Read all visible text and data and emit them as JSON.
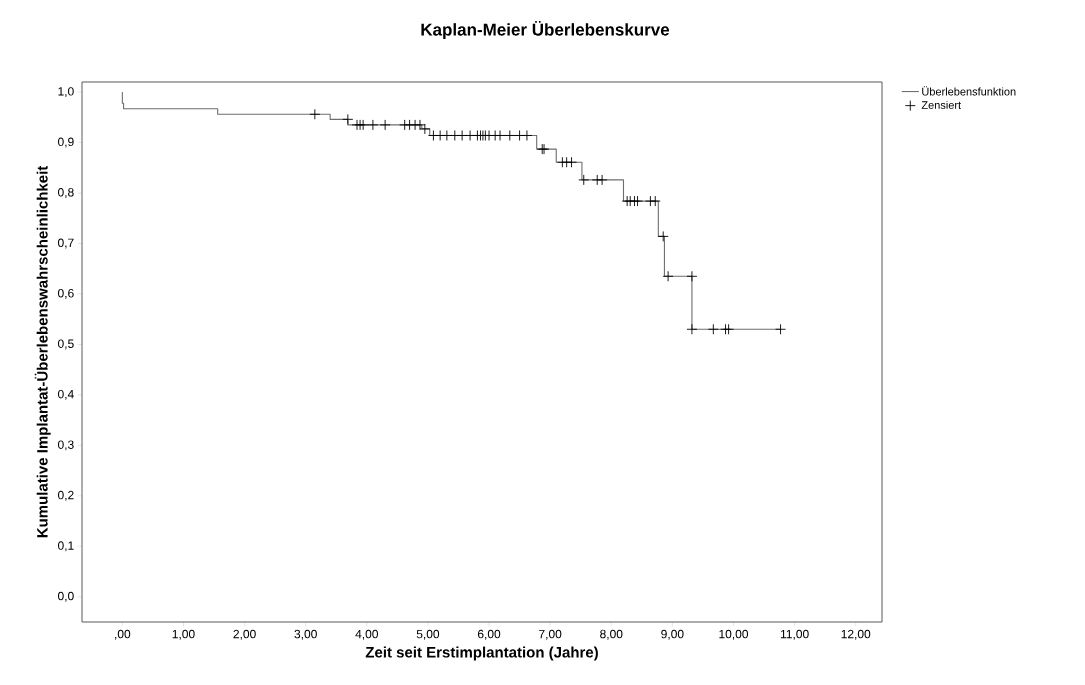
{
  "chart_data": {
    "type": "step",
    "title": "Kaplan-Meier Überlebenskurve",
    "xlabel": "Zeit seit Erstimplantation (Jahre)",
    "ylabel": "Kumulative Implantat-Überlebenswahrscheinlichkeit",
    "series": [
      {
        "name": "Überlebensfunktion",
        "color": "#6e6e6e",
        "x": [
          0,
          0,
          0.02,
          1.56,
          3.4,
          3.69,
          4.9,
          5.03,
          6.78,
          7.1,
          7.52,
          8.2,
          8.77,
          8.87,
          9.32,
          10.77
        ],
        "values": [
          1.0,
          0.978,
          0.967,
          0.956,
          0.946,
          0.935,
          0.927,
          0.914,
          0.887,
          0.861,
          0.826,
          0.784,
          0.714,
          0.635,
          0.53,
          0.53
        ]
      },
      {
        "name": "Zensiert",
        "type": "scatter",
        "marker": "cross",
        "color": "#000000",
        "x": [
          3.15,
          3.69,
          3.84,
          3.89,
          3.94,
          4.1,
          4.3,
          4.62,
          4.7,
          4.79,
          4.87,
          4.95,
          5.09,
          5.2,
          5.31,
          5.44,
          5.56,
          5.69,
          5.81,
          5.86,
          5.9,
          5.94,
          6.0,
          6.1,
          6.18,
          6.34,
          6.5,
          6.62,
          6.87,
          6.9,
          7.2,
          7.27,
          7.35,
          7.55,
          7.77,
          7.85,
          8.26,
          8.31,
          8.38,
          8.43,
          8.64,
          8.72,
          8.85,
          8.93,
          9.32,
          9.32,
          9.67,
          9.87,
          9.92,
          10.77
        ],
        "values": [
          0.956,
          0.946,
          0.935,
          0.935,
          0.935,
          0.935,
          0.935,
          0.935,
          0.935,
          0.935,
          0.935,
          0.927,
          0.914,
          0.914,
          0.914,
          0.914,
          0.914,
          0.914,
          0.914,
          0.914,
          0.914,
          0.914,
          0.914,
          0.914,
          0.914,
          0.914,
          0.914,
          0.914,
          0.887,
          0.887,
          0.861,
          0.861,
          0.861,
          0.826,
          0.826,
          0.826,
          0.784,
          0.784,
          0.784,
          0.784,
          0.784,
          0.784,
          0.714,
          0.635,
          0.635,
          0.53,
          0.53,
          0.53,
          0.53,
          0.53
        ]
      }
    ],
    "xlim": [
      -0.66,
      12.43
    ],
    "ylim": [
      -0.05,
      1.02
    ],
    "xticks": [
      {
        "value": 0,
        "label": ",00"
      },
      {
        "value": 1,
        "label": "1,00"
      },
      {
        "value": 2,
        "label": "2,00"
      },
      {
        "value": 3,
        "label": "3,00"
      },
      {
        "value": 4,
        "label": "4,00"
      },
      {
        "value": 5,
        "label": "5,00"
      },
      {
        "value": 6,
        "label": "6,00"
      },
      {
        "value": 7,
        "label": "7,00"
      },
      {
        "value": 8,
        "label": "8,00"
      },
      {
        "value": 9,
        "label": "9,00"
      },
      {
        "value": 10,
        "label": "10,00"
      },
      {
        "value": 11,
        "label": "11,00"
      },
      {
        "value": 12,
        "label": "12,00"
      }
    ],
    "yticks": [
      {
        "value": 0,
        "label": "0,0"
      },
      {
        "value": 0.1,
        "label": "0,1"
      },
      {
        "value": 0.2,
        "label": "0,2"
      },
      {
        "value": 0.3,
        "label": "0,3"
      },
      {
        "value": 0.4,
        "label": "0,4"
      },
      {
        "value": 0.5,
        "label": "0,5"
      },
      {
        "value": 0.6,
        "label": "0,6"
      },
      {
        "value": 0.7,
        "label": "0,7"
      },
      {
        "value": 0.8,
        "label": "0,8"
      },
      {
        "value": 0.9,
        "label": "0,9"
      },
      {
        "value": 1.0,
        "label": "1,0"
      }
    ],
    "grid": false,
    "legend": "top right"
  }
}
